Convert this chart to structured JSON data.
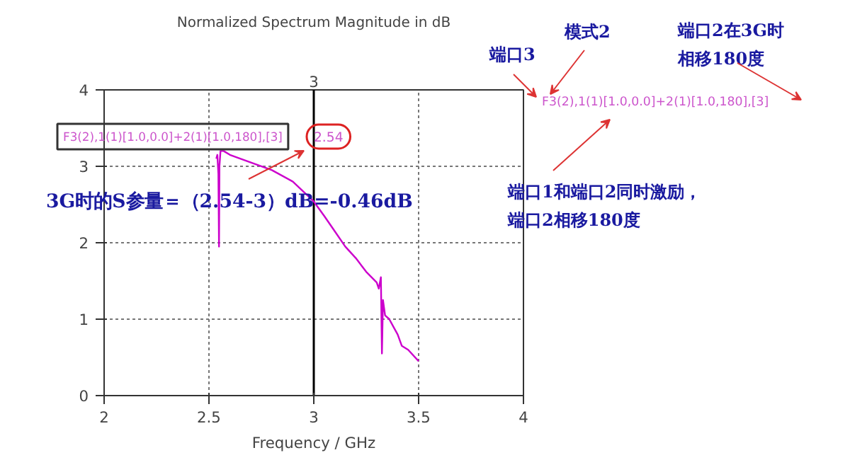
{
  "chart_data": {
    "type": "line",
    "title": "Normalized Spectrum Magnitude in dB",
    "xlabel": "Frequency / GHz",
    "x": [
      2.535,
      2.54,
      2.545,
      2.548,
      2.55,
      2.555,
      2.57,
      2.6,
      2.7,
      2.8,
      2.9,
      3.0,
      3.05,
      3.1,
      3.15,
      3.2,
      3.25,
      3.3,
      3.31,
      3.32,
      3.325,
      3.33,
      3.34,
      3.36,
      3.38,
      3.4,
      3.42,
      3.45,
      3.5
    ],
    "series": [
      {
        "color": "#cc00cc",
        "values": [
          3.1,
          3.15,
          2.9,
          1.95,
          3.0,
          3.2,
          3.2,
          3.15,
          3.05,
          2.95,
          2.8,
          2.54,
          2.35,
          2.15,
          1.95,
          1.8,
          1.62,
          1.48,
          1.4,
          1.55,
          0.55,
          1.25,
          1.05,
          1.0,
          0.9,
          0.8,
          0.65,
          0.6,
          0.45
        ]
      }
    ],
    "xlim": [
      2,
      4
    ],
    "ylim": [
      0,
      4
    ],
    "xticks": [
      2,
      2.5,
      3,
      3.5,
      4
    ],
    "yticks": [
      0,
      1,
      2,
      3,
      4
    ],
    "grid": true,
    "marker": "none",
    "line_style": "solid",
    "ref_lines": [
      {
        "axis": "x",
        "value": 3,
        "label": "3",
        "color": "#000000"
      }
    ],
    "annotations": [
      "2.54",
      "F3(2),1(1)[1.0,0.0]+2(1)[1.0,180],[3]",
      "3G时的S参量＝（2.54-3）dB=-0.46dB",
      "端口3",
      "模式2",
      "端口2在3G时相移180度",
      "F3(2),1(1)[1.0,0.0]+2(1)[1.0,180],[3]",
      "端口1和端口2同时激励，端口2相移180度"
    ]
  }
}
